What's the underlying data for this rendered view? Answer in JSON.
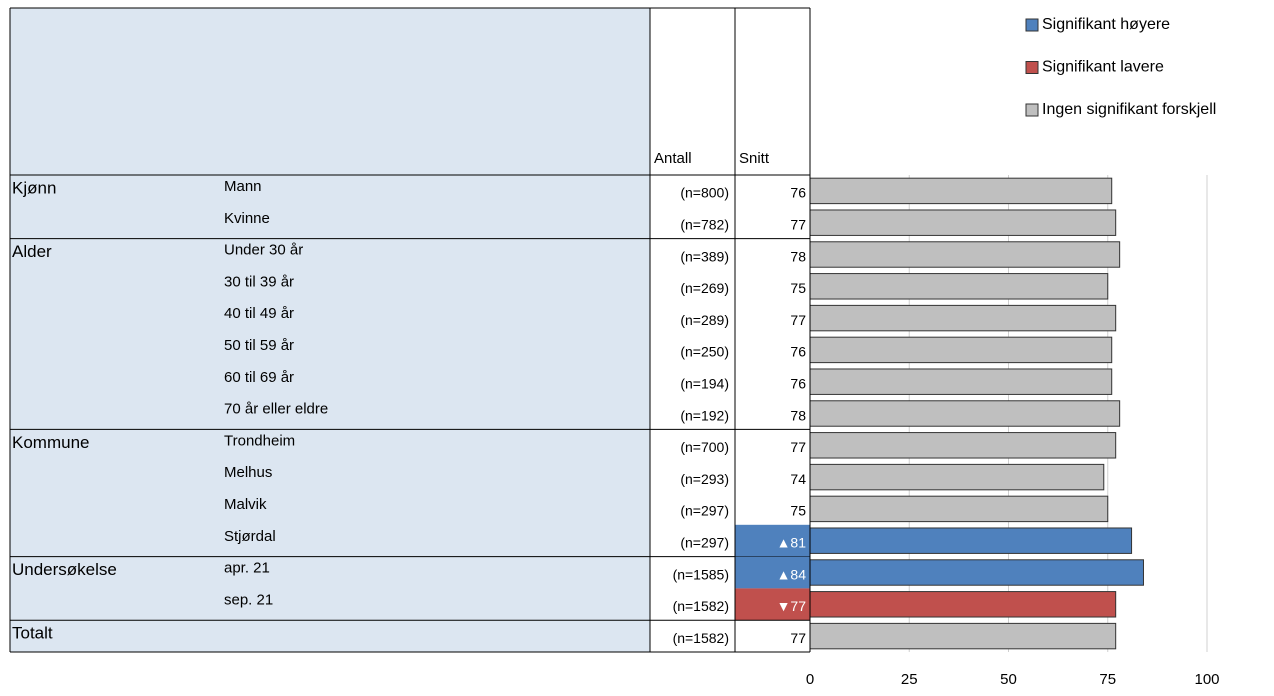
{
  "chart_data": {
    "type": "barh",
    "column_headers": [
      "Antall",
      "Snitt"
    ],
    "groups": [
      "Kjønn",
      null,
      "Alder",
      null,
      null,
      null,
      null,
      null,
      "Kommune",
      null,
      null,
      null,
      "Undersøkelse",
      null,
      "Totalt"
    ],
    "categories": [
      "Mann",
      "Kvinne",
      "Under 30 år",
      "30 til 39 år",
      "40 til 49 år",
      "50 til 59 år",
      "60 til 69 år",
      "70 år eller eldre",
      "Trondheim",
      "Melhus",
      "Malvik",
      "Stjørdal",
      "apr. 21",
      "sep. 21",
      null
    ],
    "n_labels": [
      "(n=800)",
      "(n=782)",
      "(n=389)",
      "(n=269)",
      "(n=289)",
      "(n=250)",
      "(n=194)",
      "(n=192)",
      "(n=700)",
      "(n=293)",
      "(n=297)",
      "(n=297)",
      "(n=1585)",
      "(n=1582)",
      "(n=1582)"
    ],
    "values": [
      76,
      77,
      78,
      75,
      77,
      76,
      76,
      78,
      77,
      74,
      75,
      81,
      84,
      77,
      77
    ],
    "value_labels": [
      "76",
      "77",
      "78",
      "75",
      "77",
      "76",
      "76",
      "78",
      "77",
      "74",
      "75",
      "▲81",
      "▲84",
      "▼77",
      "77"
    ],
    "colors": [
      "#bfbfbf",
      "#bfbfbf",
      "#bfbfbf",
      "#bfbfbf",
      "#bfbfbf",
      "#bfbfbf",
      "#bfbfbf",
      "#bfbfbf",
      "#bfbfbf",
      "#bfbfbf",
      "#bfbfbf",
      "#4f81bd",
      "#4f81bd",
      "#c0504d",
      "#bfbfbf"
    ],
    "legend": [
      {
        "name": "Signifikant høyere",
        "color": "#4f81bd"
      },
      {
        "name": "Signifikant lavere",
        "color": "#c0504d"
      },
      {
        "name": "Ingen signifikant forskjell",
        "color": "#bfbfbf"
      }
    ],
    "xlim": [
      0,
      100
    ],
    "xticks": [
      0,
      25,
      50,
      75,
      100
    ],
    "grid": true
  }
}
